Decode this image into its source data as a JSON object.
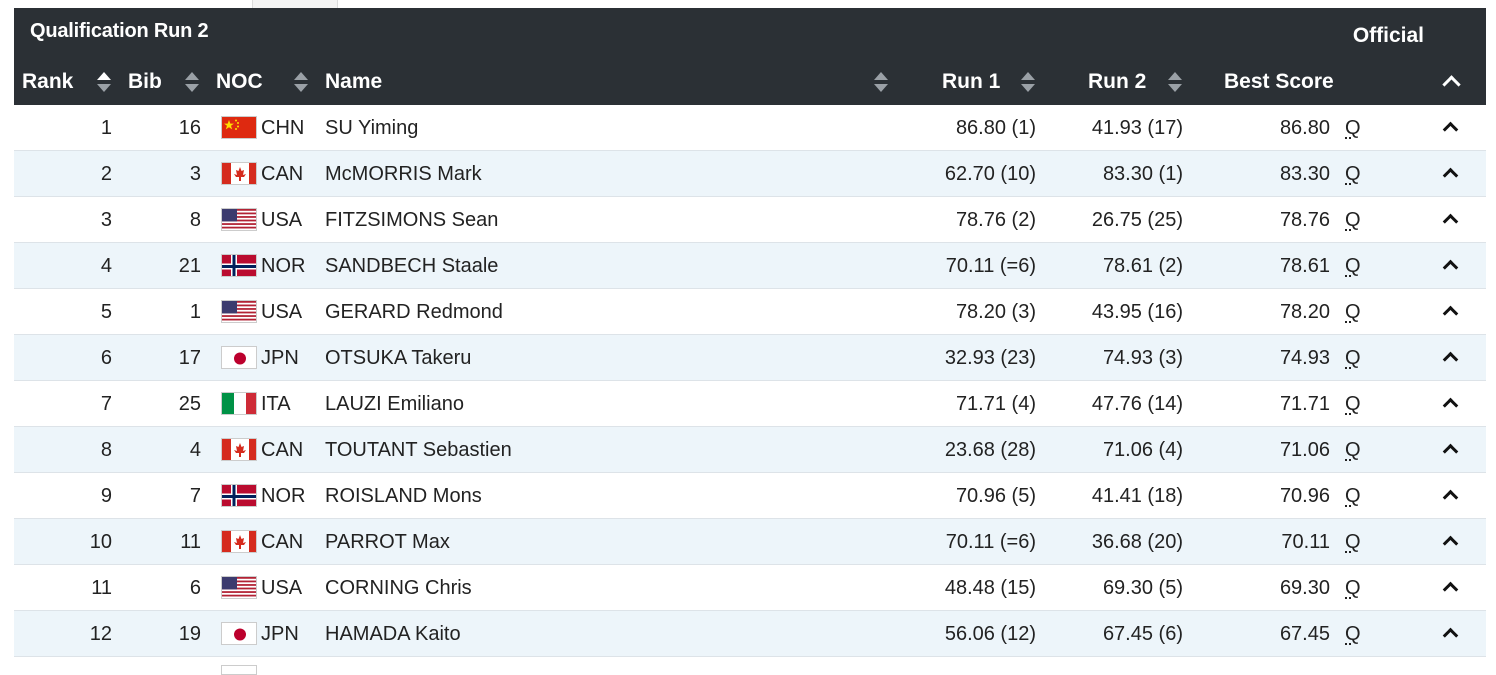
{
  "header": {
    "title": "Qualification Run 2",
    "status": "Official",
    "columns": {
      "rank": "Rank",
      "bib": "Bib",
      "noc": "NOC",
      "name": "Name",
      "run1": "Run 1",
      "run2": "Run 2",
      "best": "Best Score"
    }
  },
  "colors": {
    "header_bg": "#2b3035",
    "alt_row": "#edf5fa"
  },
  "rows": [
    {
      "rank": "1",
      "bib": "16",
      "noc": "CHN",
      "name": "SU Yiming",
      "run1": "86.80 (1)",
      "run2": "41.93 (17)",
      "best": "86.80",
      "q": "Q"
    },
    {
      "rank": "2",
      "bib": "3",
      "noc": "CAN",
      "name": "McMORRIS Mark",
      "run1": "62.70 (10)",
      "run2": "83.30 (1)",
      "best": "83.30",
      "q": "Q"
    },
    {
      "rank": "3",
      "bib": "8",
      "noc": "USA",
      "name": "FITZSIMONS Sean",
      "run1": "78.76 (2)",
      "run2": "26.75 (25)",
      "best": "78.76",
      "q": "Q"
    },
    {
      "rank": "4",
      "bib": "21",
      "noc": "NOR",
      "name": "SANDBECH Staale",
      "run1": "70.11 (=6)",
      "run2": "78.61 (2)",
      "best": "78.61",
      "q": "Q"
    },
    {
      "rank": "5",
      "bib": "1",
      "noc": "USA",
      "name": "GERARD Redmond",
      "run1": "78.20 (3)",
      "run2": "43.95 (16)",
      "best": "78.20",
      "q": "Q"
    },
    {
      "rank": "6",
      "bib": "17",
      "noc": "JPN",
      "name": "OTSUKA Takeru",
      "run1": "32.93 (23)",
      "run2": "74.93 (3)",
      "best": "74.93",
      "q": "Q"
    },
    {
      "rank": "7",
      "bib": "25",
      "noc": "ITA",
      "name": "LAUZI Emiliano",
      "run1": "71.71 (4)",
      "run2": "47.76 (14)",
      "best": "71.71",
      "q": "Q"
    },
    {
      "rank": "8",
      "bib": "4",
      "noc": "CAN",
      "name": "TOUTANT Sebastien",
      "run1": "23.68 (28)",
      "run2": "71.06 (4)",
      "best": "71.06",
      "q": "Q"
    },
    {
      "rank": "9",
      "bib": "7",
      "noc": "NOR",
      "name": "ROISLAND Mons",
      "run1": "70.96 (5)",
      "run2": "41.41 (18)",
      "best": "70.96",
      "q": "Q"
    },
    {
      "rank": "10",
      "bib": "11",
      "noc": "CAN",
      "name": "PARROT Max",
      "run1": "70.11 (=6)",
      "run2": "36.68 (20)",
      "best": "70.11",
      "q": "Q"
    },
    {
      "rank": "11",
      "bib": "6",
      "noc": "USA",
      "name": "CORNING Chris",
      "run1": "48.48 (15)",
      "run2": "69.30 (5)",
      "best": "69.30",
      "q": "Q"
    },
    {
      "rank": "12",
      "bib": "19",
      "noc": "JPN",
      "name": "HAMADA Kaito",
      "run1": "56.06 (12)",
      "run2": "67.45 (6)",
      "best": "67.45",
      "q": "Q"
    }
  ]
}
